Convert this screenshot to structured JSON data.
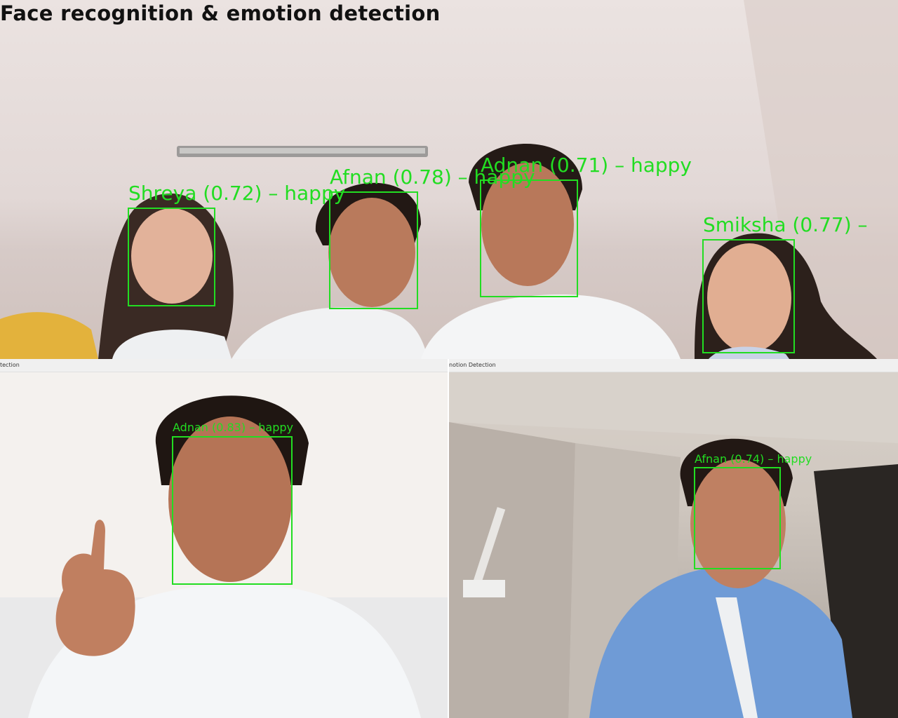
{
  "title": "Face recognition & emotion detection",
  "windows": {
    "bottom_left_title": "tection",
    "bottom_right_title": "notion Detection"
  },
  "detections": {
    "top": [
      {
        "label": "Shreya (0.72) – happy"
      },
      {
        "label": "Afnan (0.78) – happy"
      },
      {
        "label": "Adnan (0.71) – happy"
      },
      {
        "label": "Smiksha (0.77) –"
      }
    ],
    "bottom_left": [
      {
        "label": "Adnan (0.83) – happy"
      }
    ],
    "bottom_right": [
      {
        "label": "Afnan (0.74) – happy"
      }
    ]
  },
  "colors": {
    "box": "#22dd22",
    "shirt_white": "#f2f3f4",
    "shirt_blue": "#6f9bd6",
    "hair": "#241a16",
    "skin": "#c98c6e"
  }
}
